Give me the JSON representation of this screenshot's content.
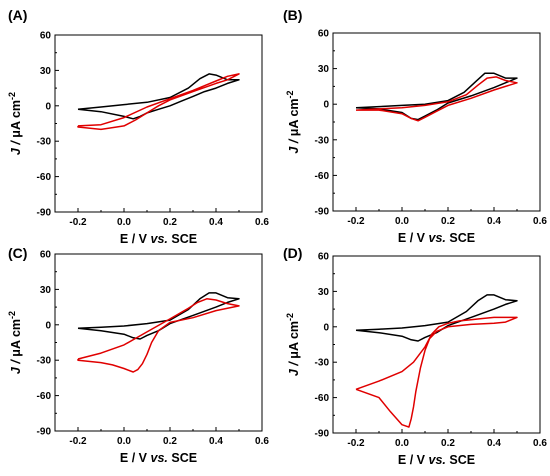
{
  "chart_data": [
    {
      "type": "line",
      "panel_label": "(A)",
      "xlabel_parts": [
        "E / V ",
        "vs.",
        " SCE"
      ],
      "ylabel_parts": [
        "J / ",
        "μA cm",
        "-2"
      ],
      "xlim": [
        -0.3,
        0.6
      ],
      "ylim": [
        -90,
        60
      ],
      "xticks": [
        -0.2,
        0.0,
        0.2,
        0.4,
        0.6
      ],
      "xtick_labels": [
        "-0.2",
        "0.0",
        "0.2",
        "0.4",
        "0.6"
      ],
      "yticks": [
        -90,
        -60,
        -30,
        0,
        30,
        60
      ],
      "ytick_labels": [
        "-90",
        "-60",
        "-30",
        "0",
        "30",
        "60"
      ],
      "series": [
        {
          "color": "#000000",
          "x": [
            -0.2,
            -0.1,
            0.0,
            0.1,
            0.2,
            0.28,
            0.33,
            0.37,
            0.4,
            0.45,
            0.5,
            0.45,
            0.4,
            0.35,
            0.3,
            0.25,
            0.2,
            0.15,
            0.1,
            0.07,
            0.04,
            0.0,
            -0.1,
            -0.2
          ],
          "y": [
            -3,
            -1,
            1,
            3,
            7,
            15,
            23,
            27,
            26,
            22,
            22,
            19,
            15,
            12,
            8,
            4,
            0,
            -3,
            -6,
            -9,
            -11,
            -9,
            -5,
            -3
          ]
        },
        {
          "color": "#e00000",
          "x": [
            -0.2,
            -0.1,
            0.0,
            0.1,
            0.2,
            0.3,
            0.35,
            0.4,
            0.45,
            0.5,
            0.45,
            0.4,
            0.3,
            0.2,
            0.15,
            0.1,
            0.05,
            0.0,
            -0.1,
            -0.2
          ],
          "y": [
            -17,
            -16,
            -10,
            -1,
            6,
            13,
            17,
            21,
            25,
            27,
            22,
            19,
            12,
            5,
            0,
            -6,
            -12,
            -17,
            -20,
            -18
          ]
        }
      ]
    },
    {
      "type": "line",
      "panel_label": "(B)",
      "xlabel_parts": [
        "E / V ",
        "vs.",
        " SCE"
      ],
      "ylabel_parts": [
        "J / ",
        "μA cm",
        "-2"
      ],
      "xlim": [
        -0.3,
        0.6
      ],
      "ylim": [
        -90,
        60
      ],
      "xticks": [
        -0.2,
        0.0,
        0.2,
        0.4,
        0.6
      ],
      "xtick_labels": [
        "-0.2",
        "0.0",
        "0.2",
        "0.4",
        "0.6"
      ],
      "yticks": [
        -90,
        -60,
        -30,
        0,
        30,
        60
      ],
      "ytick_labels": [
        "-90",
        "-60",
        "-30",
        "0",
        "30",
        "60"
      ],
      "series": [
        {
          "color": "#000000",
          "x": [
            -0.2,
            -0.1,
            0.0,
            0.1,
            0.2,
            0.27,
            0.32,
            0.36,
            0.4,
            0.45,
            0.5,
            0.45,
            0.4,
            0.3,
            0.2,
            0.15,
            0.1,
            0.07,
            0.04,
            0.0,
            -0.1,
            -0.2
          ],
          "y": [
            -3,
            -2,
            -1,
            0,
            3,
            10,
            19,
            26,
            26,
            22,
            22,
            18,
            14,
            7,
            1,
            -5,
            -10,
            -13,
            -12,
            -7,
            -4,
            -3
          ]
        },
        {
          "color": "#e00000",
          "x": [
            -0.2,
            -0.1,
            0.0,
            0.1,
            0.2,
            0.28,
            0.33,
            0.37,
            0.41,
            0.45,
            0.5,
            0.45,
            0.4,
            0.3,
            0.2,
            0.15,
            0.1,
            0.07,
            0.04,
            0.0,
            -0.1,
            -0.2
          ],
          "y": [
            -5,
            -4,
            -3,
            -1,
            2,
            8,
            16,
            22,
            23,
            20,
            18,
            15,
            12,
            5,
            -1,
            -6,
            -11,
            -14,
            -12,
            -8,
            -5,
            -5
          ]
        }
      ]
    },
    {
      "type": "line",
      "panel_label": "(C)",
      "xlabel_parts": [
        "E / V ",
        "vs.",
        " SCE"
      ],
      "ylabel_parts": [
        "J / ",
        "μA cm",
        "-2"
      ],
      "xlim": [
        -0.3,
        0.6
      ],
      "ylim": [
        -90,
        60
      ],
      "xticks": [
        -0.2,
        0.0,
        0.2,
        0.4,
        0.6
      ],
      "xtick_labels": [
        "-0.2",
        "0.0",
        "0.2",
        "0.4",
        "0.6"
      ],
      "yticks": [
        -90,
        -60,
        -30,
        0,
        30,
        60
      ],
      "ytick_labels": [
        "-90",
        "-60",
        "-30",
        "0",
        "30",
        "60"
      ],
      "series": [
        {
          "color": "#000000",
          "x": [
            -0.2,
            -0.1,
            0.0,
            0.1,
            0.2,
            0.28,
            0.33,
            0.37,
            0.4,
            0.45,
            0.5,
            0.45,
            0.4,
            0.3,
            0.2,
            0.15,
            0.1,
            0.07,
            0.04,
            0.0,
            -0.1,
            -0.2
          ],
          "y": [
            -3,
            -2,
            -1,
            1,
            4,
            13,
            22,
            27,
            27,
            23,
            22,
            19,
            15,
            8,
            1,
            -5,
            -9,
            -12,
            -11,
            -8,
            -5,
            -3
          ]
        },
        {
          "color": "#e00000",
          "x": [
            -0.2,
            -0.1,
            0.0,
            0.1,
            0.2,
            0.28,
            0.32,
            0.36,
            0.4,
            0.45,
            0.5,
            0.4,
            0.3,
            0.2,
            0.15,
            0.12,
            0.1,
            0.08,
            0.06,
            0.04,
            0.0,
            -0.05,
            -0.1,
            -0.2
          ],
          "y": [
            -29,
            -24,
            -17,
            -6,
            5,
            14,
            19,
            22,
            21,
            18,
            16,
            12,
            6,
            2,
            -5,
            -15,
            -25,
            -33,
            -38,
            -40,
            -37,
            -34,
            -32,
            -30
          ]
        }
      ]
    },
    {
      "type": "line",
      "panel_label": "(D)",
      "xlabel_parts": [
        "E / V ",
        "vs.",
        " SCE"
      ],
      "ylabel_parts": [
        "J / ",
        "μA cm",
        "-2"
      ],
      "xlim": [
        -0.3,
        0.6
      ],
      "ylim": [
        -90,
        60
      ],
      "xticks": [
        -0.2,
        0.0,
        0.2,
        0.4,
        0.6
      ],
      "xtick_labels": [
        "-0.2",
        "0.0",
        "0.2",
        "0.4",
        "0.6"
      ],
      "yticks": [
        -90,
        -60,
        -30,
        0,
        30,
        60
      ],
      "ytick_labels": [
        "-90",
        "-60",
        "-30",
        "0",
        "30",
        "60"
      ],
      "series": [
        {
          "color": "#000000",
          "x": [
            -0.2,
            -0.1,
            0.0,
            0.1,
            0.2,
            0.28,
            0.33,
            0.37,
            0.4,
            0.45,
            0.5,
            0.45,
            0.4,
            0.3,
            0.2,
            0.15,
            0.1,
            0.07,
            0.04,
            0.0,
            -0.1,
            -0.2
          ],
          "y": [
            -3,
            -2,
            -1,
            1,
            4,
            13,
            22,
            27,
            27,
            23,
            22,
            19,
            15,
            8,
            1,
            -5,
            -9,
            -12,
            -11,
            -8,
            -5,
            -3
          ]
        },
        {
          "color": "#e00000",
          "x": [
            -0.2,
            -0.1,
            0.0,
            0.05,
            0.1,
            0.13,
            0.16,
            0.2,
            0.25,
            0.3,
            0.35,
            0.4,
            0.45,
            0.5,
            0.45,
            0.4,
            0.3,
            0.2,
            0.15,
            0.12,
            0.1,
            0.08,
            0.06,
            0.05,
            0.04,
            0.03,
            0.0,
            -0.05,
            -0.1,
            -0.2
          ],
          "y": [
            -53,
            -46,
            -38,
            -30,
            -17,
            -6,
            0,
            3,
            5,
            6,
            7,
            8,
            8,
            8,
            4,
            3,
            2,
            0,
            -4,
            -10,
            -20,
            -35,
            -55,
            -68,
            -78,
            -85,
            -83,
            -72,
            -60,
            -53
          ]
        }
      ]
    }
  ]
}
